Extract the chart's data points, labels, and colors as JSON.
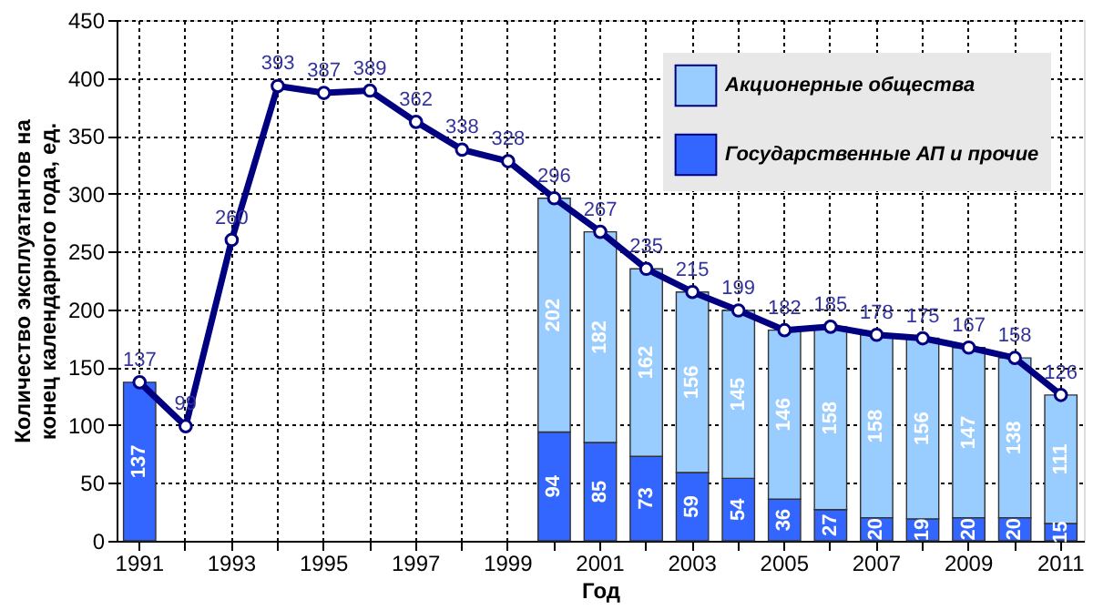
{
  "chart_data": {
    "type": "bar",
    "stacked": true,
    "xlabel": "Год",
    "ylabel": "Количество эксплуатантов на конец календарного года, ед.",
    "categories": [
      "1991",
      null,
      "1993",
      null,
      "1995",
      null,
      "1997",
      null,
      "1999",
      null,
      "2001",
      null,
      "2003",
      null,
      "2005",
      null,
      "2007",
      null,
      "2009",
      null,
      "2011"
    ],
    "series": [
      {
        "name": "Государственные АП и прочие",
        "color": "#3366ff",
        "values": [
          137,
          null,
          null,
          null,
          null,
          null,
          null,
          null,
          null,
          94,
          85,
          73,
          59,
          54,
          36,
          27,
          20,
          19,
          20,
          20,
          15
        ]
      },
      {
        "name": "Акционерные общества",
        "color": "#99ccff",
        "values": [
          null,
          null,
          null,
          null,
          null,
          null,
          null,
          null,
          null,
          202,
          182,
          162,
          156,
          145,
          146,
          158,
          158,
          156,
          147,
          138,
          111
        ]
      },
      {
        "type": "line",
        "color": "#000080",
        "values": [
          137,
          99,
          260,
          393,
          387,
          389,
          362,
          338,
          328,
          296,
          267,
          235,
          215,
          199,
          182,
          185,
          178,
          175,
          167,
          158,
          126
        ]
      }
    ],
    "ylim": [
      0,
      450
    ],
    "yticks": [
      0,
      50,
      100,
      150,
      200,
      250,
      300,
      350,
      400,
      450
    ],
    "grid": true,
    "legend": "top right",
    "marker": "circle",
    "data_labels": true
  }
}
